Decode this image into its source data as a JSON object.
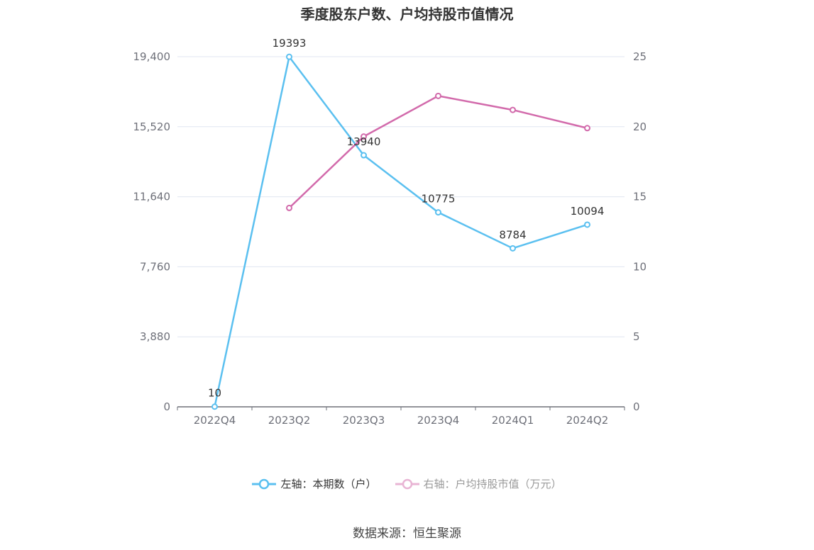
{
  "chart_data": {
    "type": "line",
    "title": "季度股东户数、户均持股市值情况",
    "categories": [
      "2022Q4",
      "2023Q2",
      "2023Q3",
      "2023Q4",
      "2024Q1",
      "2024Q2"
    ],
    "y_left": {
      "ticks": [
        "0",
        "3,880",
        "7,760",
        "11,640",
        "15,520",
        "19,400"
      ],
      "ylim": [
        0,
        19400
      ]
    },
    "y_right": {
      "ticks": [
        "0",
        "5",
        "10",
        "15",
        "20",
        "25"
      ],
      "ylim": [
        0,
        25
      ]
    },
    "grid": true,
    "legend_position": "bottom",
    "series": [
      {
        "name": "左轴：本期数（户）",
        "axis": "left",
        "color": "#5bc0f0",
        "values": [
          10,
          19393,
          13940,
          10775,
          8784,
          10094
        ],
        "labels": [
          "10",
          "19393",
          "13940",
          "10775",
          "8784",
          "10094"
        ]
      },
      {
        "name": "右轴：户均持股市值（万元）",
        "axis": "right",
        "color": "#d26aab",
        "values": [
          null,
          14.2,
          19.3,
          22.2,
          21.2,
          19.9
        ]
      }
    ]
  },
  "source": "数据来源：恒生聚源"
}
